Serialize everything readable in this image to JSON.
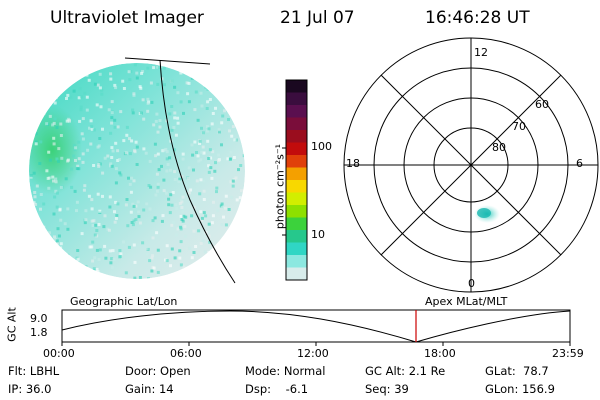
{
  "header": {
    "title": "Ultraviolet Imager",
    "date": "21 Jul 07",
    "time": "16:46:28 UT"
  },
  "colorbar": {
    "unit_label": "photon cm⁻²s⁻¹",
    "ticks": [
      "100",
      "10"
    ],
    "scale": "log",
    "colors": [
      "#1a0820",
      "#3a0d3e",
      "#5a0f4f",
      "#7a0d3a",
      "#9a0d1e",
      "#c20c0c",
      "#e0400a",
      "#f4a000",
      "#f8d800",
      "#d2ee00",
      "#8ee000",
      "#3cd23c",
      "#26c88c",
      "#30d6c4",
      "#8ce8e0",
      "#d8eceb"
    ]
  },
  "polar_plot": {
    "mlt_labels": {
      "top": "12",
      "right": "6",
      "bottom": "0",
      "left": "18"
    },
    "lat_labels": [
      "60",
      "70",
      "80"
    ]
  },
  "timeline": {
    "left_label": "Geographic Lat/Lon",
    "right_label": "Apex MLat/MLT",
    "y_axis_label": "GC Alt",
    "y_ticks": [
      "9.0",
      "1.8"
    ],
    "x_ticks": [
      "00:00",
      "06:00",
      "12:00",
      "18:00",
      "23:59"
    ],
    "current_time_marker": "16:46",
    "marker_color": "#cc0000"
  },
  "info": {
    "flt": "Flt: LBHL",
    "ip": "IP: 36.0",
    "door": "Door: Open",
    "gain": "Gain: 14",
    "mode": "Mode: Normal",
    "dsp": "Dsp:    -6.1",
    "gc_alt": "GC Alt: 2.1 Re",
    "seq": "Seq: 39",
    "glat": "GLat:  78.7",
    "glon": "GLon: 156.9"
  }
}
